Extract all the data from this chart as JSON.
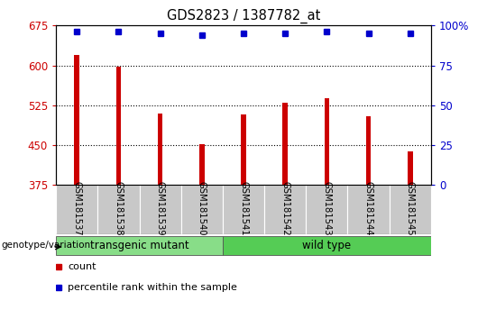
{
  "title": "GDS2823 / 1387782_at",
  "samples": [
    "GSM181537",
    "GSM181538",
    "GSM181539",
    "GSM181540",
    "GSM181541",
    "GSM181542",
    "GSM181543",
    "GSM181544",
    "GSM181545"
  ],
  "counts": [
    620,
    598,
    510,
    452,
    508,
    530,
    538,
    505,
    438
  ],
  "percentile_ranks": [
    96,
    96,
    95,
    94,
    95,
    95,
    96,
    95,
    95
  ],
  "bar_color": "#CC0000",
  "dot_color": "#0000CC",
  "ylim_left": [
    375,
    675
  ],
  "yticks_left": [
    375,
    450,
    525,
    600,
    675
  ],
  "ylim_right": [
    0,
    100
  ],
  "yticks_right": [
    0,
    25,
    50,
    75,
    100
  ],
  "ylabel_left_color": "#CC0000",
  "ylabel_right_color": "#0000CC",
  "bar_width": 0.12,
  "genotype_label": "genotype/variation",
  "legend_count_label": "count",
  "legend_pct_label": "percentile rank within the sample",
  "group_defs": [
    {
      "label": "transgenic mutant",
      "start": 0,
      "end": 3,
      "color": "#88DD88"
    },
    {
      "label": "wild type",
      "start": 4,
      "end": 8,
      "color": "#55CC55"
    }
  ],
  "tick_bg_color": "#C8C8C8"
}
